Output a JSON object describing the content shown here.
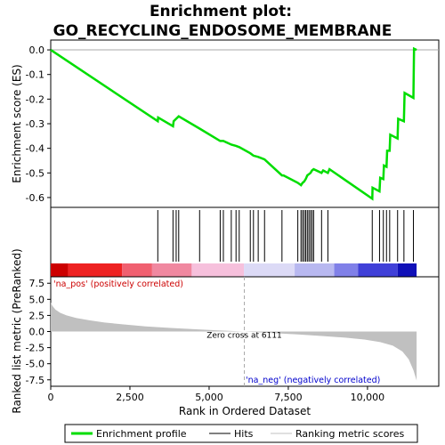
{
  "chart_data": {
    "type": "line",
    "title_lines": [
      "Enrichment plot:",
      "GO_RECYCLING_ENDOSOME_MEMBRANE"
    ],
    "top_panel": {
      "ylabel": "Enrichment score (ES)",
      "ylim": [
        -0.64,
        0.04
      ],
      "yticks": [
        {
          "v": 0.0,
          "label": "0.0"
        },
        {
          "v": -0.1,
          "label": "-0.1"
        },
        {
          "v": -0.2,
          "label": "-0.2"
        },
        {
          "v": -0.3,
          "label": "-0.3"
        },
        {
          "v": -0.4,
          "label": "-0.4"
        },
        {
          "v": -0.5,
          "label": "-0.5"
        },
        {
          "v": -0.6,
          "label": "-0.6"
        }
      ],
      "series": {
        "name": "Enrichment profile",
        "color": "#00dd00",
        "points": [
          [
            0,
            0.0
          ],
          [
            3380,
            -0.29
          ],
          [
            3390,
            -0.275
          ],
          [
            3860,
            -0.31
          ],
          [
            3880,
            -0.29
          ],
          [
            3960,
            -0.28
          ],
          [
            4040,
            -0.27
          ],
          [
            4700,
            -0.32
          ],
          [
            5350,
            -0.37
          ],
          [
            5450,
            -0.37
          ],
          [
            5700,
            -0.385
          ],
          [
            5850,
            -0.39
          ],
          [
            5950,
            -0.395
          ],
          [
            6300,
            -0.42
          ],
          [
            6400,
            -0.43
          ],
          [
            6550,
            -0.435
          ],
          [
            6750,
            -0.445
          ],
          [
            7300,
            -0.51
          ],
          [
            7350,
            -0.51
          ],
          [
            7800,
            -0.54
          ],
          [
            7850,
            -0.545
          ],
          [
            7900,
            -0.55
          ],
          [
            7950,
            -0.54
          ],
          [
            8000,
            -0.535
          ],
          [
            8050,
            -0.525
          ],
          [
            8100,
            -0.51
          ],
          [
            8150,
            -0.505
          ],
          [
            8200,
            -0.5
          ],
          [
            8250,
            -0.49
          ],
          [
            8300,
            -0.485
          ],
          [
            8550,
            -0.5
          ],
          [
            8600,
            -0.49
          ],
          [
            8750,
            -0.5
          ],
          [
            8800,
            -0.485
          ],
          [
            10150,
            -0.605
          ],
          [
            10160,
            -0.56
          ],
          [
            10380,
            -0.575
          ],
          [
            10400,
            -0.52
          ],
          [
            10500,
            -0.525
          ],
          [
            10520,
            -0.47
          ],
          [
            10600,
            -0.475
          ],
          [
            10620,
            -0.41
          ],
          [
            10700,
            -0.41
          ],
          [
            10720,
            -0.345
          ],
          [
            10950,
            -0.36
          ],
          [
            10970,
            -0.28
          ],
          [
            11150,
            -0.29
          ],
          [
            11170,
            -0.175
          ],
          [
            11450,
            -0.195
          ],
          [
            11470,
            0.005
          ],
          [
            11550,
            0.0
          ]
        ]
      },
      "zero_line": true
    },
    "hits": [
      3380,
      3860,
      3960,
      4040,
      4700,
      5350,
      5450,
      5700,
      5850,
      5950,
      6300,
      6400,
      6550,
      6750,
      7300,
      7800,
      7900,
      7950,
      8000,
      8050,
      8100,
      8150,
      8200,
      8250,
      8300,
      8550,
      8750,
      10150,
      10380,
      10500,
      10600,
      10700,
      10950,
      11150,
      11450
    ],
    "heat_bar": [
      {
        "from": 0,
        "to": 550,
        "color": "#cc0000"
      },
      {
        "from": 550,
        "to": 2250,
        "color": "#ee2222"
      },
      {
        "from": 2250,
        "to": 3200,
        "color": "#f06070"
      },
      {
        "from": 3200,
        "to": 4450,
        "color": "#f088a0"
      },
      {
        "from": 4450,
        "to": 6100,
        "color": "#f6c0dc"
      },
      {
        "from": 6100,
        "to": 7700,
        "color": "#dcdaf6"
      },
      {
        "from": 7700,
        "to": 8950,
        "color": "#b8b8f0"
      },
      {
        "from": 8950,
        "to": 9700,
        "color": "#8080e8"
      },
      {
        "from": 9700,
        "to": 10950,
        "color": "#4040d8"
      },
      {
        "from": 10950,
        "to": 11550,
        "color": "#1010b8"
      }
    ],
    "bottom_panel": {
      "ylabel": "Ranked list metric (PreRanked)",
      "ylim": [
        -8.5,
        8.5
      ],
      "yticks": [
        {
          "v": 7.5,
          "label": "7.5"
        },
        {
          "v": 5.0,
          "label": "5.0"
        },
        {
          "v": 2.5,
          "label": "2.5"
        },
        {
          "v": 0.0,
          "label": "0.0"
        },
        {
          "v": -2.5,
          "label": "-2.5"
        },
        {
          "v": -5.0,
          "label": "-5.0"
        },
        {
          "v": -7.5,
          "label": "-7.5"
        }
      ],
      "metric_points": [
        [
          0,
          4.5
        ],
        [
          50,
          4.0
        ],
        [
          150,
          3.4
        ],
        [
          300,
          2.9
        ],
        [
          500,
          2.5
        ],
        [
          800,
          2.1
        ],
        [
          1200,
          1.75
        ],
        [
          1700,
          1.4
        ],
        [
          2300,
          1.1
        ],
        [
          3000,
          0.8
        ],
        [
          3800,
          0.55
        ],
        [
          4600,
          0.35
        ],
        [
          5300,
          0.18
        ],
        [
          6111,
          0.0
        ],
        [
          7000,
          -0.25
        ],
        [
          7800,
          -0.45
        ],
        [
          8600,
          -0.7
        ],
        [
          9300,
          -0.95
        ],
        [
          9900,
          -1.25
        ],
        [
          10400,
          -1.65
        ],
        [
          10800,
          -2.2
        ],
        [
          11100,
          -3.1
        ],
        [
          11300,
          -4.3
        ],
        [
          11450,
          -6.0
        ],
        [
          11550,
          -7.6
        ]
      ],
      "zero_cross_label": "Zero cross at 6111",
      "zero_cross_x": 6111,
      "pos_label": "'na_pos' (positively correlated)",
      "neg_label": "'na_neg' (negatively correlated)"
    },
    "xlabel": "Rank in Ordered Dataset",
    "xlim": [
      0,
      12250
    ],
    "xticks": [
      {
        "v": 0,
        "label": "0"
      },
      {
        "v": 2500,
        "label": "2,500"
      },
      {
        "v": 5000,
        "label": "5,000"
      },
      {
        "v": 7500,
        "label": "7,500"
      },
      {
        "v": 10000,
        "label": "10,000"
      }
    ],
    "legend": [
      {
        "label": "Enrichment profile",
        "color": "#00dd00",
        "kind": "thick-line"
      },
      {
        "label": "Hits",
        "color": "#000000",
        "kind": "line"
      },
      {
        "label": "Ranking metric scores",
        "color": "#c0c0c0",
        "kind": "line"
      }
    ]
  }
}
